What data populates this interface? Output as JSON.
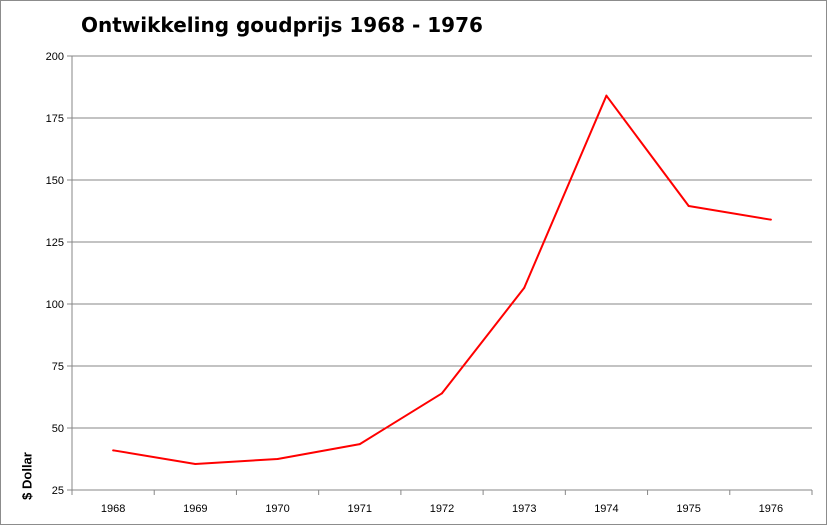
{
  "chart_data": {
    "type": "line",
    "title": "Ontwikkeling goudprijs 1968 - 1976",
    "xlabel": "",
    "ylabel": "$ Dollar",
    "categories": [
      "1968",
      "1969",
      "1970",
      "1971",
      "1972",
      "1973",
      "1974",
      "1975",
      "1976"
    ],
    "series": [
      {
        "values": [
          41,
          35.5,
          37.5,
          43.5,
          64,
          106.5,
          184,
          139.5,
          134
        ],
        "color": "#ff0000"
      }
    ],
    "yticks": [
      "25",
      "50",
      "75",
      "100",
      "125",
      "150",
      "175",
      "200"
    ],
    "ylim": [
      25,
      200
    ],
    "grid": true,
    "legend": "none"
  }
}
